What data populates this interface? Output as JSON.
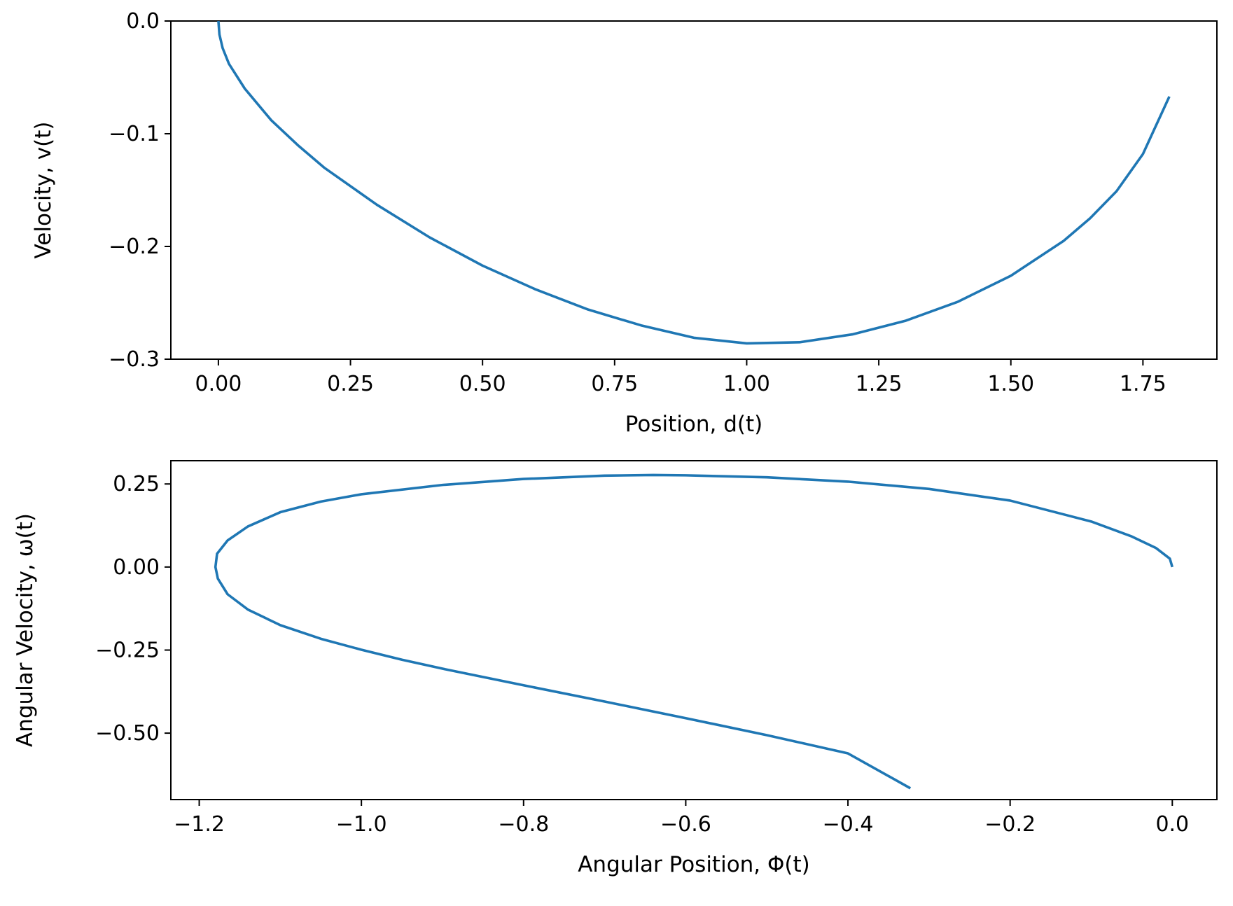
{
  "chart_data": [
    {
      "type": "line",
      "title": "",
      "xlabel": "Position, d(t)",
      "ylabel": "Velocity, v(t)",
      "xlim": [
        -0.09,
        1.89
      ],
      "ylim": [
        -0.3,
        0.0
      ],
      "xticks": [
        0.0,
        0.25,
        0.5,
        0.75,
        1.0,
        1.25,
        1.5,
        1.75
      ],
      "xtick_labels": [
        "0.00",
        "0.25",
        "0.50",
        "0.75",
        "1.00",
        "1.25",
        "1.50",
        "1.75"
      ],
      "yticks": [
        0.0,
        -0.1,
        -0.2,
        -0.3
      ],
      "ytick_labels": [
        "0.0",
        "−0.1",
        "−0.2",
        "−0.3"
      ],
      "grid": false,
      "color": "#1f77b4",
      "series": [
        {
          "x": [
            0.0,
            0.002,
            0.008,
            0.02,
            0.05,
            0.1,
            0.15,
            0.2,
            0.3,
            0.4,
            0.5,
            0.6,
            0.7,
            0.8,
            0.9,
            1.0,
            1.1,
            1.2,
            1.3,
            1.4,
            1.5,
            1.6,
            1.65,
            1.7,
            1.75,
            1.8
          ],
          "y": [
            0.0,
            -0.012,
            -0.024,
            -0.038,
            -0.06,
            -0.088,
            -0.11,
            -0.13,
            -0.163,
            -0.192,
            -0.217,
            -0.238,
            -0.256,
            -0.27,
            -0.281,
            -0.286,
            -0.285,
            -0.278,
            -0.266,
            -0.249,
            -0.226,
            -0.195,
            -0.175,
            -0.151,
            -0.118,
            -0.067
          ]
        }
      ]
    },
    {
      "type": "line",
      "title": "",
      "xlabel": "Angular Position, Φ(t)",
      "ylabel": "Angular Velocity, ω(t)",
      "xlim": [
        -1.235,
        0.055
      ],
      "ylim": [
        -0.7,
        0.32
      ],
      "xticks": [
        -1.2,
        -1.0,
        -0.8,
        -0.6,
        -0.4,
        -0.2,
        0.0
      ],
      "xtick_labels": [
        "−1.2",
        "−1.0",
        "−0.8",
        "−0.6",
        "−0.4",
        "−0.2",
        "0.0"
      ],
      "yticks": [
        0.25,
        0.0,
        -0.25,
        -0.5
      ],
      "ytick_labels": [
        "0.25",
        "0.00",
        "−0.25",
        "−0.50"
      ],
      "grid": false,
      "color": "#1f77b4",
      "series": [
        {
          "x": [
            0.0,
            -0.003,
            -0.02,
            -0.05,
            -0.1,
            -0.2,
            -0.3,
            -0.4,
            -0.5,
            -0.6,
            -0.64,
            -0.7,
            -0.8,
            -0.9,
            -1.0,
            -1.05,
            -1.1,
            -1.14,
            -1.165,
            -1.178,
            -1.18,
            -1.177,
            -1.165,
            -1.14,
            -1.1,
            -1.05,
            -1.0,
            -0.95,
            -0.9,
            -0.8,
            -0.7,
            -0.6,
            -0.5,
            -0.4,
            -0.323
          ],
          "y": [
            0.0,
            0.025,
            0.057,
            0.092,
            0.137,
            0.2,
            0.235,
            0.257,
            0.27,
            0.276,
            0.277,
            0.275,
            0.265,
            0.247,
            0.219,
            0.197,
            0.165,
            0.122,
            0.08,
            0.04,
            0.0,
            -0.035,
            -0.082,
            -0.128,
            -0.175,
            -0.216,
            -0.249,
            -0.279,
            -0.306,
            -0.356,
            -0.405,
            -0.455,
            -0.506,
            -0.561,
            -0.666
          ]
        }
      ]
    }
  ]
}
